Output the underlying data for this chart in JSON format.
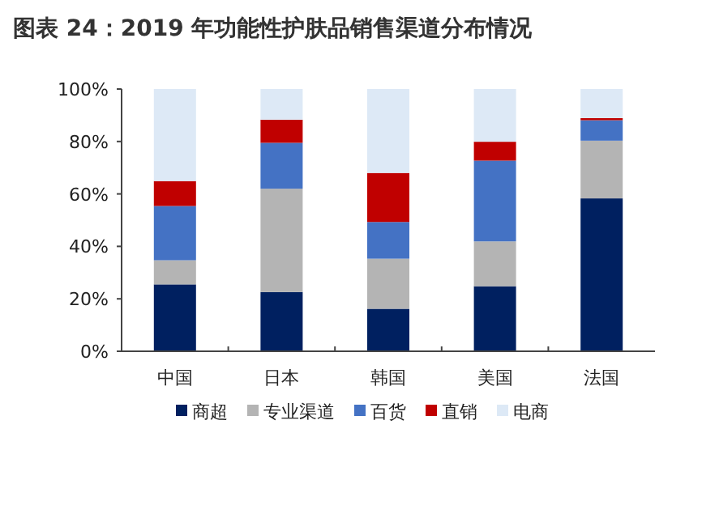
{
  "chart_data": {
    "type": "bar",
    "stacked": true,
    "title": "图表 24：2019 年功能性护肤品销售渠道分布情况",
    "categories": [
      "中国",
      "日本",
      "韩国",
      "美国",
      "法国"
    ],
    "ylim": [
      0,
      100
    ],
    "yticks": [
      {
        "value": 0,
        "label": "0%"
      },
      {
        "value": 20,
        "label": "20%"
      },
      {
        "value": 40,
        "label": "40%"
      },
      {
        "value": 60,
        "label": "60%"
      },
      {
        "value": 80,
        "label": "80%"
      },
      {
        "value": 100,
        "label": "100%"
      }
    ],
    "grid": false,
    "legend": "bottom",
    "series": [
      {
        "name": "商超",
        "color": "#002060",
        "values": [
          25.5,
          22.6,
          16.2,
          24.8,
          58.3
        ]
      },
      {
        "name": "专业渠道",
        "color": "#b4b4b4",
        "values": [
          9.2,
          39.4,
          19.1,
          17.1,
          22.0
        ]
      },
      {
        "name": "百货",
        "color": "#4472c4",
        "values": [
          20.7,
          17.5,
          14.0,
          30.8,
          7.8
        ]
      },
      {
        "name": "直销",
        "color": "#c00000",
        "values": [
          9.5,
          8.8,
          18.7,
          7.2,
          0.8
        ]
      },
      {
        "name": "电商",
        "color": "#dde9f6",
        "values": [
          35.1,
          11.7,
          32.0,
          20.1,
          11.1
        ]
      }
    ]
  }
}
